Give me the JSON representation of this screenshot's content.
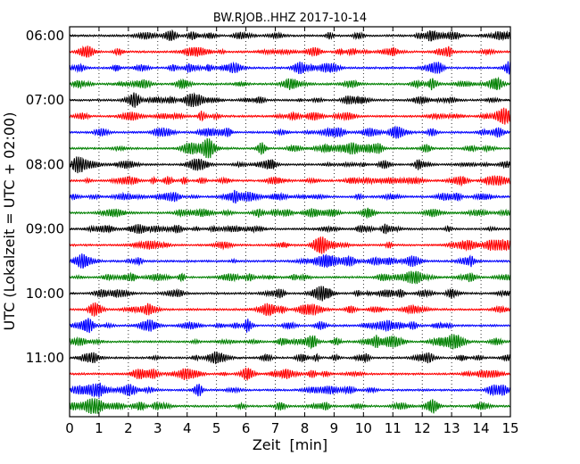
{
  "chart_data": {
    "type": "line",
    "title": "BW.RJOB..HHZ 2017-10-14",
    "xlabel": "Zeit  [min]",
    "ylabel": "UTC (Lokalzeit = UTC + 02:00)",
    "xlim": [
      0,
      15
    ],
    "x_ticks": [
      "0",
      "1",
      "2",
      "3",
      "4",
      "5",
      "6",
      "7",
      "8",
      "9",
      "10",
      "11",
      "12",
      "13",
      "14",
      "15"
    ],
    "y_ticks": [
      "06:00",
      "07:00",
      "08:00",
      "09:00",
      "10:00",
      "11:00"
    ],
    "grid": "vertical dotted at each minute",
    "trace_interval_minutes": 15,
    "trace_colors": [
      "#000000",
      "#ff0000",
      "#0000ff",
      "#008000"
    ],
    "traces": [
      {
        "start": "06:00",
        "color": "#000000"
      },
      {
        "start": "06:15",
        "color": "#ff0000"
      },
      {
        "start": "06:30",
        "color": "#0000ff"
      },
      {
        "start": "06:45",
        "color": "#008000"
      },
      {
        "start": "07:00",
        "color": "#000000"
      },
      {
        "start": "07:15",
        "color": "#ff0000"
      },
      {
        "start": "07:30",
        "color": "#0000ff"
      },
      {
        "start": "07:45",
        "color": "#008000"
      },
      {
        "start": "08:00",
        "color": "#000000"
      },
      {
        "start": "08:15",
        "color": "#ff0000"
      },
      {
        "start": "08:30",
        "color": "#0000ff"
      },
      {
        "start": "08:45",
        "color": "#008000"
      },
      {
        "start": "09:00",
        "color": "#000000"
      },
      {
        "start": "09:15",
        "color": "#ff0000"
      },
      {
        "start": "09:30",
        "color": "#0000ff"
      },
      {
        "start": "09:45",
        "color": "#008000"
      },
      {
        "start": "10:00",
        "color": "#000000"
      },
      {
        "start": "10:15",
        "color": "#ff0000"
      },
      {
        "start": "10:30",
        "color": "#0000ff"
      },
      {
        "start": "10:45",
        "color": "#008000"
      },
      {
        "start": "11:00",
        "color": "#000000"
      },
      {
        "start": "11:15",
        "color": "#ff0000"
      },
      {
        "start": "11:30",
        "color": "#0000ff"
      },
      {
        "start": "11:45",
        "color": "#008000"
      }
    ]
  }
}
